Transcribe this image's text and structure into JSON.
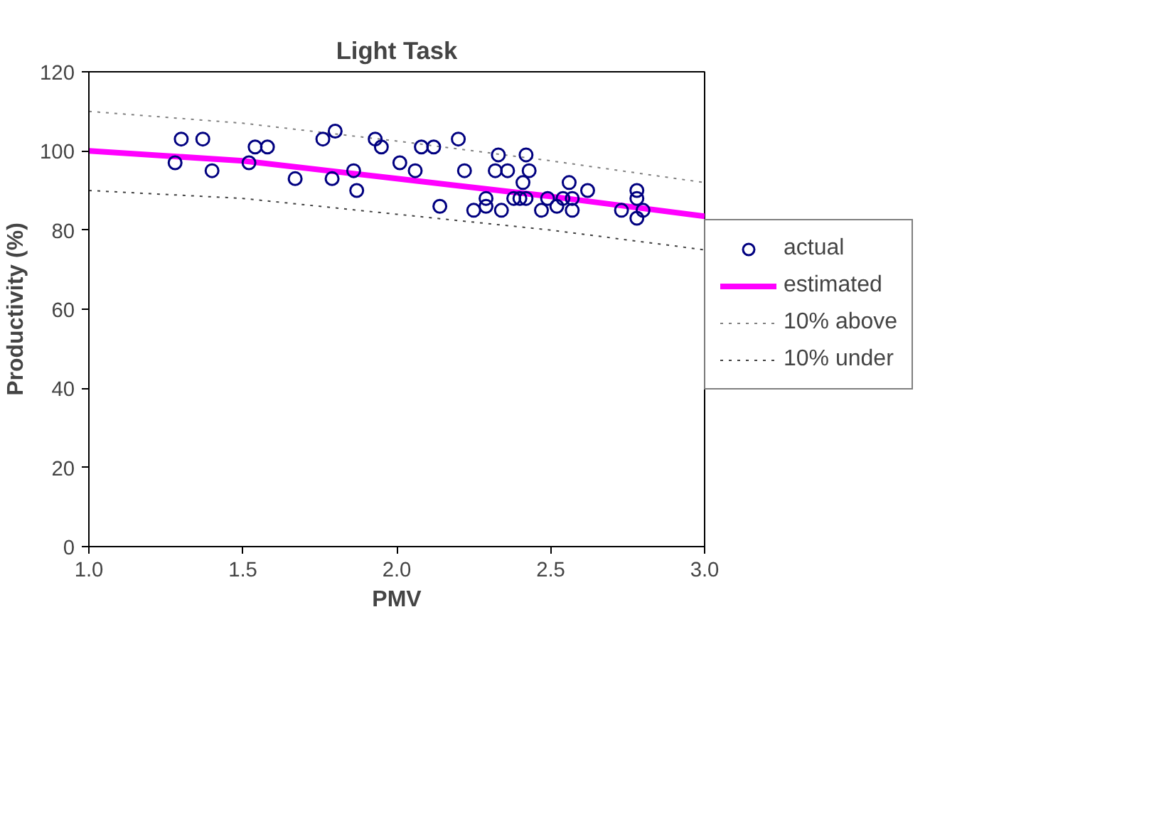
{
  "chart_data": {
    "type": "scatter",
    "title": "Light Task",
    "xlabel": "PMV",
    "ylabel": "Productivity (%)",
    "xlim": [
      1.0,
      3.0
    ],
    "xticks": [
      {
        "value": 1.0,
        "label": "1.0"
      },
      {
        "value": 1.5,
        "label": "1.5"
      },
      {
        "value": 2.0,
        "label": "2.0"
      },
      {
        "value": 2.5,
        "label": "2.5"
      },
      {
        "value": 3.0,
        "label": "3.0"
      }
    ],
    "ylim": [
      0,
      120
    ],
    "yticks": [
      0,
      20,
      40,
      60,
      80,
      100,
      120
    ],
    "grid": false,
    "legend": "right",
    "series": [
      {
        "name": "actual",
        "marker": "circle",
        "color": "#000080",
        "x": [
          1.28,
          1.3,
          1.37,
          1.4,
          1.52,
          1.54,
          1.58,
          1.67,
          1.76,
          1.8,
          1.79,
          1.86,
          1.87,
          1.93,
          1.95,
          2.01,
          2.06,
          2.08,
          2.12,
          2.14,
          2.2,
          2.22,
          2.25,
          2.29,
          2.29,
          2.32,
          2.33,
          2.34,
          2.36,
          2.38,
          2.42,
          2.43,
          2.41,
          2.4,
          2.42,
          2.47,
          2.49,
          2.52,
          2.54,
          2.56,
          2.57,
          2.57,
          2.62,
          2.73,
          2.78,
          2.78,
          2.78,
          2.8
        ],
        "values": [
          97,
          103,
          103,
          95,
          97,
          101,
          101,
          93,
          103,
          105,
          93,
          95,
          90,
          103,
          101,
          97,
          95,
          101,
          101,
          86,
          103,
          95,
          85,
          88,
          86,
          95,
          99,
          85,
          95,
          88,
          99,
          95,
          92,
          88,
          88,
          85,
          88,
          86,
          88,
          92,
          88,
          85,
          90,
          85,
          90,
          88,
          83,
          85
        ]
      },
      {
        "name": "estimated",
        "type": "line",
        "color": "#ff00ff",
        "x": [
          1.0,
          1.5,
          2.0,
          2.5,
          3.0
        ],
        "values": [
          100,
          97.5,
          93,
          88.5,
          83.5
        ]
      },
      {
        "name": "10% above",
        "type": "line",
        "color": "#808080",
        "line_style": "dotted",
        "x": [
          1.0,
          1.5,
          2.0,
          2.5,
          3.0
        ],
        "values": [
          110,
          107,
          102.5,
          97.5,
          92
        ]
      },
      {
        "name": "10% under",
        "type": "line",
        "color": "#404040",
        "line_style": "dotted",
        "x": [
          1.0,
          1.5,
          2.0,
          2.5,
          3.0
        ],
        "values": [
          90,
          88,
          84,
          80,
          75
        ]
      }
    ]
  }
}
